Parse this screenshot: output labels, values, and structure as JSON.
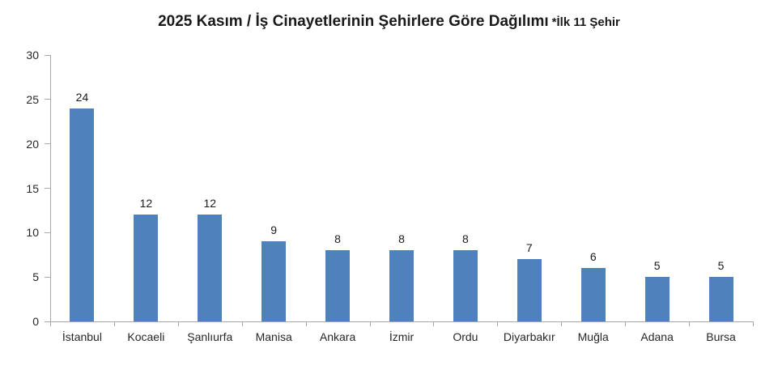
{
  "chart_data": {
    "type": "bar",
    "title": "2025 Kasım / İş Cinayetlerinin Şehirlere Göre Dağılımı *İlk 11 Şehir",
    "title_main": "2025 Kasım / İş Cinayetlerinin Şehirlere Göre Dağılımı",
    "title_note": "*İlk 11 Şehir",
    "categories": [
      "İstanbul",
      "Kocaeli",
      "Şanlıurfa",
      "Manisa",
      "Ankara",
      "İzmir",
      "Ordu",
      "Diyarbakır",
      "Muğla",
      "Adana",
      "Bursa"
    ],
    "values": [
      24,
      12,
      12,
      9,
      8,
      8,
      8,
      7,
      6,
      5,
      5
    ],
    "xlabel": "",
    "ylabel": "",
    "ylim": [
      0,
      30
    ],
    "yticks": [
      0,
      5,
      10,
      15,
      20,
      25,
      30
    ],
    "grid": false,
    "legend": false,
    "data_labels": true,
    "bar_color": "#4f81bd",
    "axis_color": "#a6a6a6"
  }
}
